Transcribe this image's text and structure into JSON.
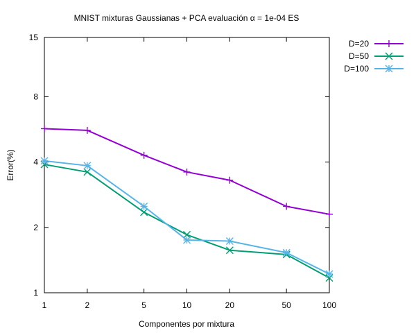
{
  "chart_data": {
    "type": "line",
    "title": "MNIST mixturas Gaussianas + PCA evaluación α = 1e-04 ES",
    "xlabel": "Componentes por mixtura",
    "ylabel": "Error(%)",
    "xscale": "log",
    "yscale": "log",
    "xlim": [
      1,
      100
    ],
    "ylim": [
      1,
      15
    ],
    "xticks": [
      1,
      2,
      5,
      10,
      20,
      50,
      100
    ],
    "yticks": [
      1,
      2,
      4,
      8,
      15
    ],
    "legend_position": "top-right-outside",
    "x": [
      1,
      2,
      5,
      10,
      20,
      50,
      100
    ],
    "series": [
      {
        "name": "D=20",
        "color": "#9400d3",
        "marker": "plus",
        "values": [
          5.7,
          5.6,
          4.3,
          3.6,
          3.3,
          2.5,
          2.3
        ]
      },
      {
        "name": "D=50",
        "color": "#009e73",
        "marker": "cross",
        "values": [
          3.9,
          3.6,
          2.35,
          1.85,
          1.57,
          1.5,
          1.17
        ]
      },
      {
        "name": "D=100",
        "color": "#56b4e9",
        "marker": "star",
        "values": [
          4.05,
          3.85,
          2.5,
          1.75,
          1.73,
          1.53,
          1.22
        ]
      }
    ]
  }
}
